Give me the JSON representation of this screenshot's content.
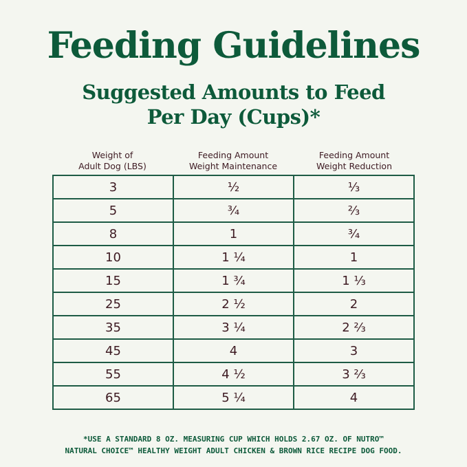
{
  "title": "Feeding Guidelines",
  "subtitle_line1": "Suggested Amounts to Feed",
  "subtitle_line2": "Per Day (Cups)*",
  "headers": [
    {
      "line1": "Weight of",
      "line2": "Adult Dog (LBS)"
    },
    {
      "line1": "Feeding Amount",
      "line2": "Weight Maintenance"
    },
    {
      "line1": "Feeding Amount",
      "line2": "Weight Reduction"
    }
  ],
  "rows": [
    [
      "3",
      "½",
      "⅓"
    ],
    [
      "5",
      "¾",
      "⅔"
    ],
    [
      "8",
      "1",
      "¾"
    ],
    [
      "10",
      "1 ¼",
      "1"
    ],
    [
      "15",
      "1 ¾",
      "1 ⅓"
    ],
    [
      "25",
      "2 ½",
      "2"
    ],
    [
      "35",
      "3 ¼",
      "2 ⅔"
    ],
    [
      "45",
      "4",
      "3"
    ],
    [
      "55",
      "4 ½",
      "3 ⅔"
    ],
    [
      "65",
      "5 ¼",
      "4"
    ]
  ],
  "footnote_line1": "*USE A STANDARD 8 OZ. MEASURING CUP WHICH HOLDS 2.67 OZ. OF NUTRO™",
  "footnote_line2": "NATURAL CHOICE™ HEALTHY WEIGHT ADULT CHICKEN & BROWN RICE RECIPE DOG FOOD.",
  "colors": {
    "title": "#0d5a3a",
    "table_border": "#1d5b45",
    "cell_text": "#3d1a22",
    "background": "#f4f6f0"
  }
}
